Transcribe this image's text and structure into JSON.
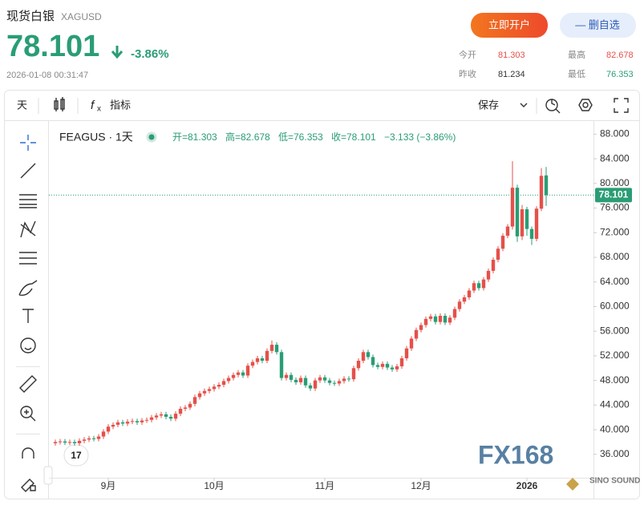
{
  "header": {
    "name": "现货白银",
    "symbol": "XAGUSD",
    "price_change_pct": "-3.86%",
    "timestamp": "2026-01-08 00:31:47",
    "open_account": "立即开户",
    "remove_watchlist": "— 删自选",
    "stats": {
      "open_label": "今开",
      "open": 81.303,
      "high_label": "最高",
      "high": 82.678,
      "prev_close_label": "昨收",
      "prev_close": 81.234,
      "low_label": "最低",
      "low": 76.353
    }
  },
  "toolbar": {
    "period": "天",
    "indicators": "指标",
    "save": "保存"
  },
  "legend": {
    "symbol": "FEAGUS · 1天",
    "open": "开=81.303",
    "high": "高=82.678",
    "low": "低=76.353",
    "close": "收=78.101",
    "change": "−3.133 (−3.86%)"
  },
  "watermark": {
    "logo": "FX168",
    "brand": "SINO SOUND"
  },
  "chart_data": {
    "type": "candlestick",
    "up_color": "#e5504a",
    "down_color": "#2a9d74",
    "grid": false,
    "categories": [
      null,
      null,
      null,
      null,
      null,
      null,
      null,
      null,
      null,
      null,
      null,
      "9月",
      null,
      null,
      null,
      null,
      null,
      null,
      null,
      null,
      null,
      null,
      null,
      null,
      null,
      null,
      null,
      null,
      null,
      null,
      null,
      null,
      null,
      "10月",
      null,
      null,
      null,
      null,
      null,
      null,
      null,
      null,
      null,
      null,
      null,
      null,
      null,
      null,
      null,
      null,
      null,
      null,
      null,
      null,
      null,
      null,
      "11月",
      null,
      null,
      null,
      null,
      null,
      null,
      null,
      null,
      null,
      null,
      null,
      null,
      null,
      null,
      null,
      null,
      null,
      null,
      null,
      "12月",
      null,
      null,
      null,
      null,
      null,
      null,
      null,
      null,
      null,
      null,
      null,
      null,
      null,
      null,
      null,
      null,
      null,
      null,
      null,
      null,
      null,
      "2026",
      null,
      null,
      null,
      null
    ],
    "open": [
      37.8,
      38.0,
      38.1,
      37.9,
      38.0,
      37.8,
      38.2,
      38.4,
      38.6,
      38.5,
      38.9,
      39.7,
      40.5,
      40.8,
      41.2,
      41.0,
      41.3,
      41.4,
      41.2,
      41.5,
      41.6,
      42.0,
      42.3,
      42.5,
      42.1,
      41.8,
      42.6,
      43.4,
      43.6,
      44.2,
      45.3,
      45.9,
      46.3,
      46.6,
      47.0,
      47.3,
      47.9,
      48.4,
      48.9,
      49.3,
      48.8,
      50.4,
      51.0,
      51.6,
      51.2,
      52.8,
      53.8,
      52.6,
      48.4,
      48.9,
      48.1,
      47.7,
      48.4,
      47.2,
      46.7,
      48.0,
      48.5,
      48.0,
      47.6,
      47.5,
      47.9,
      48.3,
      48.2,
      50.0,
      51.2,
      52.6,
      51.8,
      50.5,
      50.2,
      50.7,
      50.1,
      49.8,
      50.3,
      51.6,
      53.2,
      54.8,
      56.2,
      57.0,
      58.0,
      58.4,
      57.5,
      58.5,
      57.4,
      58.2,
      59.6,
      60.8,
      61.5,
      62.6,
      63.8,
      63.0,
      64.4,
      65.8,
      67.6,
      69.4,
      71.5,
      73.0,
      79.3,
      71.4,
      75.8,
      72.6,
      71.0,
      75.9,
      81.303
    ],
    "high": [
      38.4,
      38.5,
      38.5,
      38.4,
      38.4,
      38.6,
      38.8,
      39.0,
      39.0,
      39.3,
      40.1,
      40.9,
      41.2,
      41.6,
      41.6,
      41.7,
      41.8,
      41.8,
      41.9,
      42.0,
      42.4,
      42.7,
      42.9,
      42.9,
      42.5,
      43.0,
      43.8,
      44.0,
      44.6,
      45.7,
      46.3,
      46.7,
      47.0,
      47.4,
      47.7,
      48.3,
      48.8,
      49.3,
      49.7,
      49.7,
      50.8,
      51.4,
      52.0,
      52.0,
      53.2,
      54.5,
      54.2,
      53.0,
      49.3,
      49.3,
      48.5,
      48.8,
      48.8,
      47.6,
      48.4,
      48.9,
      48.9,
      48.4,
      48.0,
      48.3,
      48.7,
      48.7,
      50.4,
      51.6,
      53.0,
      53.0,
      52.2,
      50.9,
      51.1,
      51.1,
      50.5,
      50.7,
      52.0,
      53.6,
      55.2,
      56.6,
      57.4,
      58.4,
      58.8,
      58.8,
      58.9,
      58.9,
      58.6,
      60.0,
      61.2,
      61.9,
      63.0,
      64.2,
      64.2,
      64.8,
      66.2,
      68.0,
      69.8,
      71.9,
      73.4,
      83.6,
      79.8,
      76.5,
      76.2,
      73.0,
      76.3,
      82.5,
      82.678
    ],
    "low": [
      37.4,
      37.6,
      37.5,
      37.5,
      37.4,
      37.4,
      37.8,
      38.0,
      38.1,
      38.1,
      38.5,
      39.3,
      40.1,
      40.4,
      40.6,
      40.6,
      40.9,
      40.8,
      40.8,
      41.1,
      41.2,
      41.6,
      41.9,
      41.7,
      41.4,
      41.4,
      42.2,
      43.0,
      43.2,
      43.8,
      44.9,
      45.5,
      45.9,
      46.2,
      46.6,
      46.9,
      47.5,
      48.0,
      48.5,
      48.4,
      48.4,
      50.0,
      50.6,
      50.8,
      50.8,
      52.4,
      52.2,
      48.0,
      48.0,
      47.7,
      47.3,
      47.3,
      46.8,
      46.3,
      46.3,
      47.6,
      47.6,
      47.2,
      47.1,
      47.1,
      47.5,
      47.8,
      47.8,
      49.6,
      50.8,
      51.4,
      50.1,
      49.8,
      49.8,
      49.7,
      49.4,
      49.4,
      49.9,
      51.2,
      52.8,
      54.4,
      55.8,
      56.6,
      57.6,
      57.1,
      57.1,
      57.0,
      57.0,
      57.8,
      59.2,
      60.4,
      61.1,
      62.2,
      62.6,
      62.6,
      64.0,
      65.4,
      67.2,
      69.0,
      71.1,
      72.5,
      70.5,
      70.8,
      71.5,
      70.0,
      70.6,
      75.5,
      76.353
    ],
    "close": [
      38.0,
      38.1,
      37.9,
      38.0,
      37.8,
      38.2,
      38.4,
      38.6,
      38.5,
      38.9,
      39.7,
      40.5,
      40.8,
      41.2,
      41.0,
      41.3,
      41.4,
      41.2,
      41.5,
      41.6,
      42.0,
      42.3,
      42.5,
      42.1,
      41.8,
      42.6,
      43.4,
      43.6,
      44.2,
      45.3,
      45.9,
      46.3,
      46.6,
      47.0,
      47.3,
      47.9,
      48.4,
      48.9,
      49.3,
      48.8,
      50.4,
      51.0,
      51.6,
      51.2,
      52.8,
      53.8,
      52.6,
      48.4,
      48.9,
      48.1,
      47.7,
      48.4,
      47.2,
      46.7,
      48.0,
      48.5,
      48.0,
      47.6,
      47.5,
      47.9,
      48.3,
      48.2,
      50.0,
      51.2,
      52.6,
      51.8,
      50.5,
      50.2,
      50.7,
      50.1,
      49.8,
      50.3,
      51.6,
      53.2,
      54.8,
      56.2,
      57.0,
      58.0,
      58.4,
      57.5,
      58.5,
      57.4,
      58.2,
      59.6,
      60.8,
      61.5,
      62.6,
      63.8,
      63.0,
      64.4,
      65.8,
      67.6,
      69.4,
      71.5,
      73.0,
      79.3,
      71.4,
      75.8,
      72.6,
      71.0,
      75.9,
      81.234,
      78.101
    ],
    "ylim": [
      32.2,
      90
    ],
    "yticks": [
      {
        "value": 36,
        "label": "36.000"
      },
      {
        "value": 40,
        "label": "40.000"
      },
      {
        "value": 44,
        "label": "44.000"
      },
      {
        "value": 48,
        "label": "48.000"
      },
      {
        "value": 52,
        "label": "52.000"
      },
      {
        "value": 56,
        "label": "56.000"
      },
      {
        "value": 60,
        "label": "60.000"
      },
      {
        "value": 64,
        "label": "64.000"
      },
      {
        "value": 68,
        "label": "68.000"
      },
      {
        "value": 72,
        "label": "72.000"
      },
      {
        "value": 76,
        "label": "76.000"
      },
      {
        "value": 80,
        "label": "80.000"
      },
      {
        "value": 84,
        "label": "84.000"
      },
      {
        "value": 88,
        "label": "88.000"
      }
    ]
  }
}
